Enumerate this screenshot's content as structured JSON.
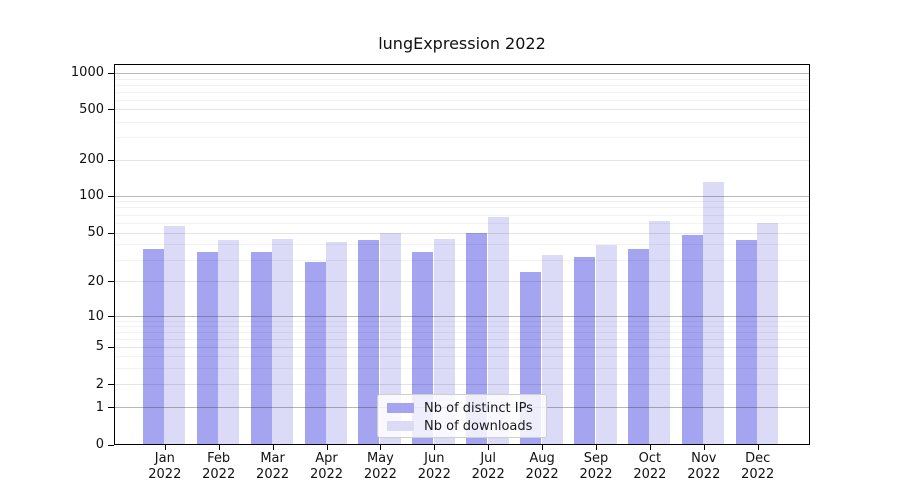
{
  "title": "lungExpression 2022",
  "legend": {
    "items": [
      {
        "label": "Nb of distinct IPs",
        "color": "#a4a4f0"
      },
      {
        "label": "Nb of downloads",
        "color": "#dbdbf8"
      }
    ]
  },
  "y_axis": {
    "tick_labels": [
      "0",
      "1",
      "2",
      "5",
      "10",
      "20",
      "50",
      "100",
      "200",
      "500",
      "1000"
    ]
  },
  "chart_data": {
    "type": "bar",
    "title": "lungExpression 2022",
    "categories": [
      "Jan 2022",
      "Feb 2022",
      "Mar 2022",
      "Apr 2022",
      "May 2022",
      "Jun 2022",
      "Jul 2022",
      "Aug 2022",
      "Sep 2022",
      "Oct 2022",
      "Nov 2022",
      "Dec 2022"
    ],
    "series": [
      {
        "name": "Nb of distinct IPs",
        "color": "#a4a4f0",
        "values": [
          37,
          35,
          35,
          29,
          44,
          35,
          50,
          24,
          32,
          37,
          48,
          44
        ]
      },
      {
        "name": "Nb of downloads",
        "color": "#dbdbf8",
        "values": [
          57,
          44,
          45,
          42,
          50,
          45,
          68,
          33,
          40,
          63,
          130,
          60
        ]
      }
    ],
    "xlabel": "",
    "ylabel": "",
    "yscale": "log-like (0,1,2,5,10,20,50,100,200,500,1000)",
    "yticks": [
      0,
      1,
      2,
      5,
      10,
      20,
      50,
      100,
      200,
      500,
      1000
    ],
    "ylim": [
      0,
      1200
    ],
    "grid": "on",
    "legend_position": "inside-bottom-center"
  }
}
